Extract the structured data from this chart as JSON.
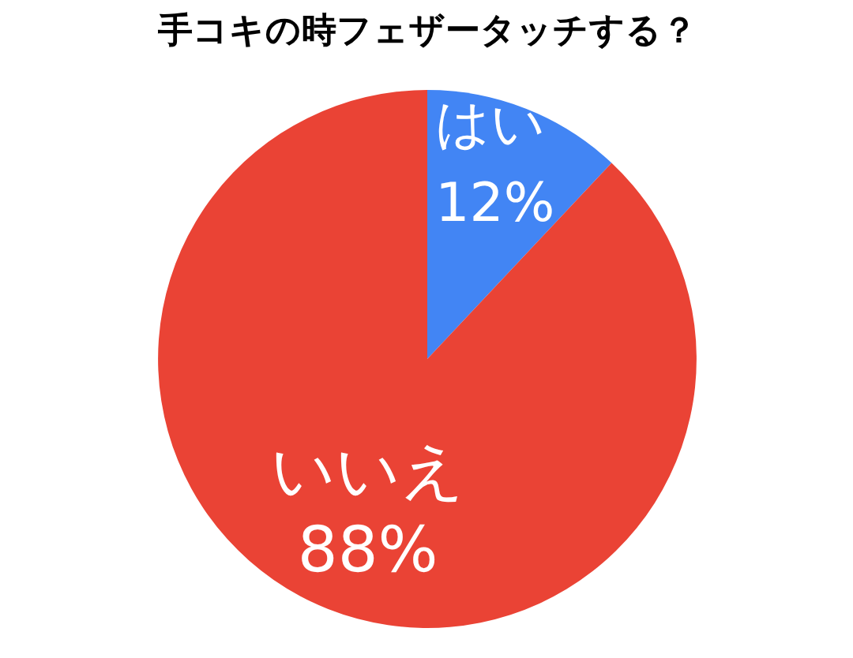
{
  "chart_data": {
    "type": "pie",
    "title": "手コキの時フェザータッチする？",
    "categories": [
      "はい",
      "いいえ"
    ],
    "values": [
      12,
      88
    ],
    "colors": [
      "#4285f4",
      "#ea4335"
    ],
    "value_labels": [
      "12%",
      "88%"
    ]
  }
}
